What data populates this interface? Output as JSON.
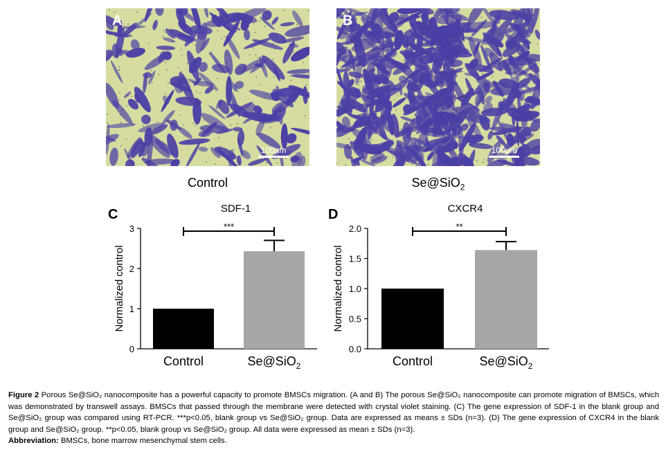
{
  "panels": {
    "a": {
      "letter": "A",
      "scale_label": "100µm",
      "caption": "Control"
    },
    "b": {
      "letter": "B",
      "scale_label": "100µm",
      "caption_main": "Se@SiO",
      "caption_sub": "2"
    }
  },
  "colors": {
    "stain_blue": "#4b3fa6",
    "membrane_green": "#d6dca0",
    "bar_control": "#000000",
    "bar_treatment": "#a6a6a6"
  },
  "chart_data": [
    {
      "type": "bar",
      "panel_letter": "C",
      "title": "SDF-1",
      "ylabel": "Normalized control",
      "categories": [
        "Control",
        "Se@SiO2"
      ],
      "values": [
        1.0,
        2.43
      ],
      "error": [
        0,
        0.27
      ],
      "ylim": [
        0,
        3
      ],
      "yticks": [
        "0",
        "1",
        "2",
        "3"
      ],
      "significance": "***",
      "grid": false
    },
    {
      "type": "bar",
      "panel_letter": "D",
      "title": "CXCR4",
      "ylabel": "Normalized control",
      "categories": [
        "Control",
        "Se@SiO2"
      ],
      "values": [
        1.0,
        1.64
      ],
      "error": [
        0,
        0.14
      ],
      "ylim": [
        0,
        2.0
      ],
      "yticks": [
        "0.0",
        "0.5",
        "1.0",
        "1.5",
        "2.0"
      ],
      "significance": "**",
      "grid": false
    }
  ],
  "caption": {
    "fig_label": "Figure 2",
    "title": "Porous Se@SiO₂ nanocomposite has a powerful capacity to promote BMSCs migration.",
    "body": "(A and B) The porous Se@SiO₂ nanocomposite can promote migration of BMSCs, which was demonstrated by transwell assays. BMSCs that passed through the membrane were detected with crystal violet staining. (C) The gene expression of SDF-1 in the blank group and Se@SiO₂ group was compared using RT-PCR. ***p<0.05, blank group vs Se@SiO₂ group. Data are expressed as means ± SDs (n=3). (D) The gene expression of CXCR4 in the blank group and Se@SiO₂ group. **p<0.05, blank group vs Se@SiO₂ group. All data were expressed as mean ± SDs (n=3).",
    "abbrev_label": "Abbreviation:",
    "abbrev_text": "BMSCs, bone marrow mesenchymal stem cells."
  }
}
